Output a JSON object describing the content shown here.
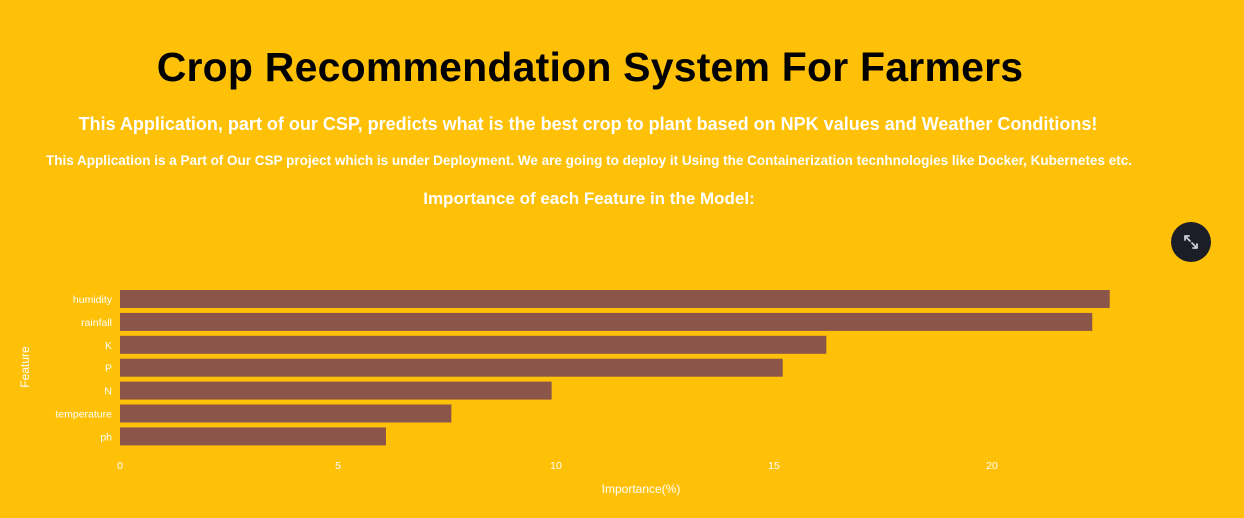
{
  "header": {
    "title": "Crop Recommendation System For Farmers",
    "subtitle": "This Application, part of our CSP, predicts what is the best crop to plant based on NPK values and Weather Conditions!",
    "note": "This Application is a Part of Our CSP project which is under Deployment. We are going to deploy it Using the Containerization tecnhnologies like Docker, Kubernetes etc.",
    "section_heading": "Importance of each Feature in the Model:"
  },
  "fullscreen_icon": "expand-arrows-icon",
  "colors": {
    "background": "#FFC107",
    "bar": "#8B5549",
    "text": "#ffffff",
    "button": "#1b1e27"
  },
  "chart_data": {
    "type": "bar",
    "orientation": "horizontal",
    "categories": [
      "humidity",
      "rainfall",
      "K",
      "P",
      "N",
      "temperature",
      "ph"
    ],
    "values": [
      22.7,
      22.3,
      16.2,
      15.2,
      9.9,
      7.6,
      6.1
    ],
    "xlabel": "Importance(%)",
    "ylabel": "Feature",
    "xlim": [
      0,
      23
    ],
    "xticks": [
      0,
      5,
      10,
      15,
      20
    ],
    "grid": false
  }
}
